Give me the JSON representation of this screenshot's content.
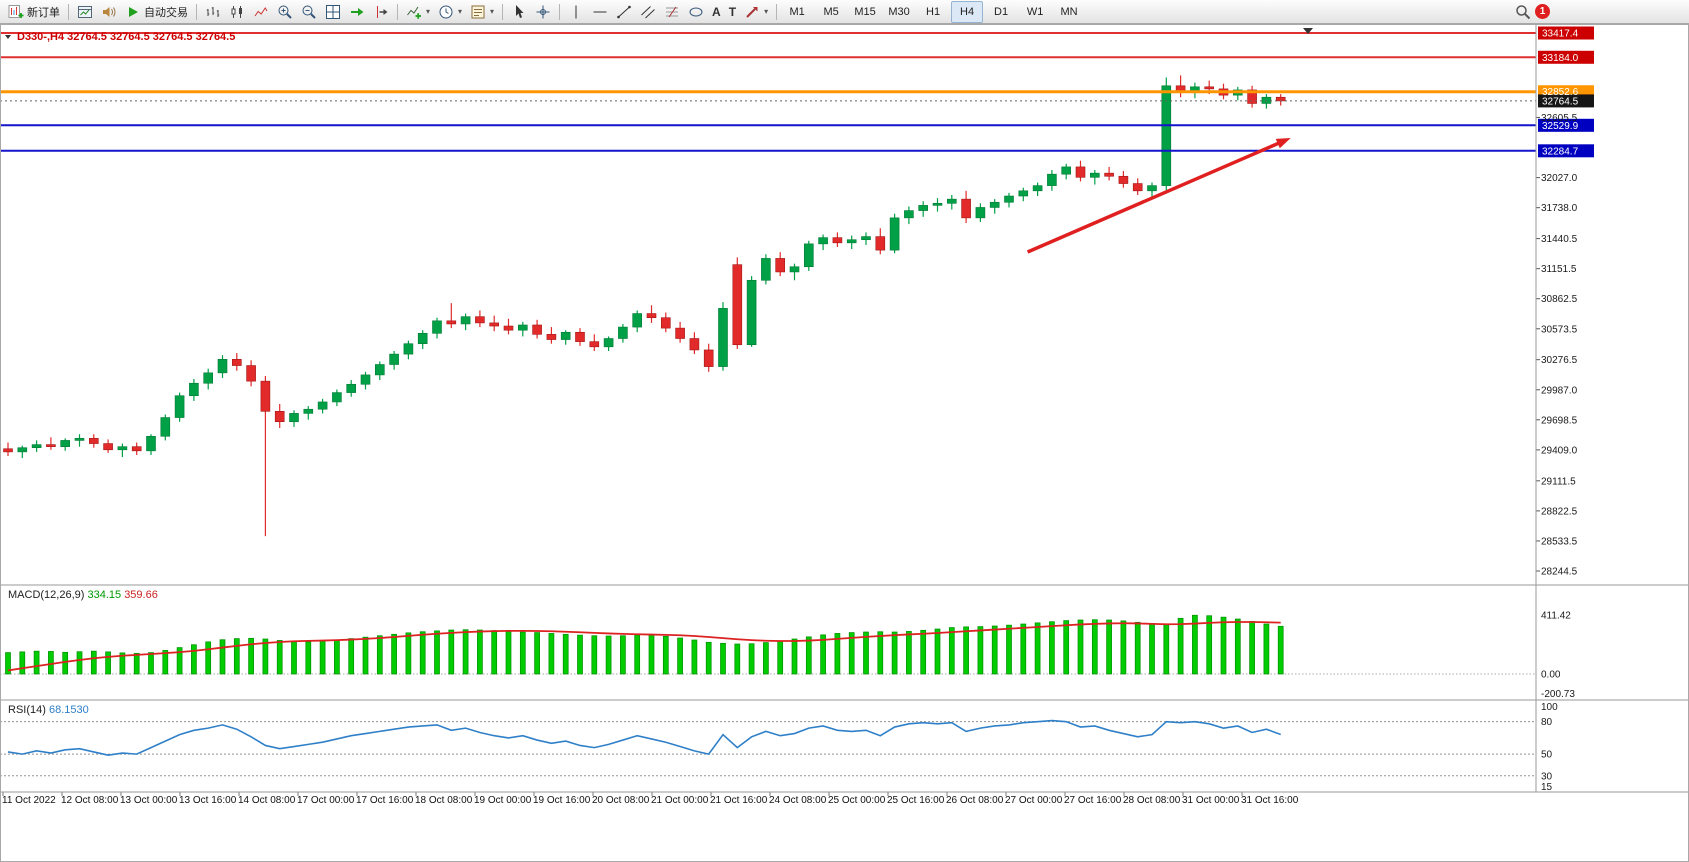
{
  "toolbar": {
    "new_order": "新订单",
    "auto_trading": "自动交易",
    "timeframes": [
      "M1",
      "M5",
      "M15",
      "M30",
      "H1",
      "H4",
      "D1",
      "W1",
      "MN"
    ],
    "active_timeframe": "H4",
    "notification_badge": "1"
  },
  "chart_data": {
    "type": "candlestick+indicators",
    "symbol": "D330-",
    "timeframe": "H4",
    "ohlc_header": "D330-,H4 32764.5 32764.5 32764.5 32764.5",
    "candles": [
      [
        29420,
        29480,
        29350,
        29390
      ],
      [
        29390,
        29450,
        29330,
        29430
      ],
      [
        29430,
        29500,
        29390,
        29460
      ],
      [
        29460,
        29530,
        29410,
        29440
      ],
      [
        29440,
        29520,
        29400,
        29500
      ],
      [
        29500,
        29560,
        29440,
        29520
      ],
      [
        29520,
        29560,
        29430,
        29470
      ],
      [
        29470,
        29510,
        29380,
        29410
      ],
      [
        29410,
        29470,
        29340,
        29440
      ],
      [
        29440,
        29480,
        29360,
        29400
      ],
      [
        29400,
        29560,
        29360,
        29540
      ],
      [
        29540,
        29750,
        29500,
        29720
      ],
      [
        29720,
        29960,
        29680,
        29930
      ],
      [
        29930,
        30090,
        29880,
        30050
      ],
      [
        30050,
        30190,
        29990,
        30150
      ],
      [
        30150,
        30320,
        30100,
        30280
      ],
      [
        30280,
        30340,
        30170,
        30220
      ],
      [
        30220,
        30270,
        30020,
        30070
      ],
      [
        30070,
        30120,
        28580,
        29780
      ],
      [
        29780,
        29850,
        29620,
        29680
      ],
      [
        29680,
        29790,
        29630,
        29760
      ],
      [
        29760,
        29830,
        29700,
        29800
      ],
      [
        29800,
        29900,
        29760,
        29870
      ],
      [
        29870,
        29990,
        29830,
        29960
      ],
      [
        29960,
        30080,
        29920,
        30040
      ],
      [
        30040,
        30160,
        29990,
        30130
      ],
      [
        30130,
        30260,
        30080,
        30230
      ],
      [
        30230,
        30360,
        30180,
        30330
      ],
      [
        30330,
        30460,
        30280,
        30430
      ],
      [
        30430,
        30560,
        30380,
        30530
      ],
      [
        30530,
        30680,
        30480,
        30650
      ],
      [
        30650,
        30820,
        30580,
        30620
      ],
      [
        30620,
        30720,
        30560,
        30690
      ],
      [
        30690,
        30750,
        30590,
        30630
      ],
      [
        30630,
        30700,
        30550,
        30600
      ],
      [
        30600,
        30670,
        30520,
        30560
      ],
      [
        30560,
        30640,
        30500,
        30610
      ],
      [
        30610,
        30660,
        30480,
        30520
      ],
      [
        30520,
        30590,
        30430,
        30470
      ],
      [
        30470,
        30560,
        30420,
        30540
      ],
      [
        30540,
        30580,
        30410,
        30450
      ],
      [
        30450,
        30520,
        30360,
        30400
      ],
      [
        30400,
        30500,
        30360,
        30480
      ],
      [
        30480,
        30620,
        30440,
        30590
      ],
      [
        30590,
        30750,
        30540,
        30720
      ],
      [
        30720,
        30800,
        30630,
        30680
      ],
      [
        30680,
        30730,
        30540,
        30580
      ],
      [
        30580,
        30640,
        30440,
        30480
      ],
      [
        30480,
        30540,
        30330,
        30370
      ],
      [
        30370,
        30430,
        30160,
        30210
      ],
      [
        30210,
        30830,
        30170,
        30770
      ],
      [
        31190,
        31260,
        30380,
        30420
      ],
      [
        30420,
        31080,
        30400,
        31040
      ],
      [
        31040,
        31290,
        31000,
        31250
      ],
      [
        31250,
        31310,
        31080,
        31120
      ],
      [
        31120,
        31200,
        31040,
        31170
      ],
      [
        31170,
        31420,
        31130,
        31390
      ],
      [
        31390,
        31480,
        31330,
        31450
      ],
      [
        31450,
        31500,
        31360,
        31400
      ],
      [
        31400,
        31470,
        31340,
        31430
      ],
      [
        31430,
        31500,
        31380,
        31460
      ],
      [
        31460,
        31540,
        31290,
        31330
      ],
      [
        31330,
        31680,
        31300,
        31640
      ],
      [
        31640,
        31750,
        31580,
        31710
      ],
      [
        31710,
        31800,
        31650,
        31760
      ],
      [
        31760,
        31830,
        31700,
        31780
      ],
      [
        31780,
        31860,
        31720,
        31820
      ],
      [
        31820,
        31900,
        31590,
        31640
      ],
      [
        31640,
        31780,
        31600,
        31740
      ],
      [
        31740,
        31820,
        31680,
        31790
      ],
      [
        31790,
        31880,
        31740,
        31850
      ],
      [
        31850,
        31930,
        31800,
        31900
      ],
      [
        31900,
        31980,
        31850,
        31950
      ],
      [
        31950,
        32100,
        31900,
        32060
      ],
      [
        32060,
        32160,
        32010,
        32130
      ],
      [
        32130,
        32190,
        31990,
        32030
      ],
      [
        32030,
        32100,
        31960,
        32070
      ],
      [
        32070,
        32130,
        32000,
        32040
      ],
      [
        32040,
        32090,
        31930,
        31970
      ],
      [
        31970,
        32020,
        31860,
        31900
      ],
      [
        31900,
        31980,
        31840,
        31950
      ],
      [
        31950,
        32990,
        31900,
        32910
      ],
      [
        32910,
        33010,
        32800,
        32860
      ],
      [
        32860,
        32940,
        32790,
        32900
      ],
      [
        32900,
        32960,
        32830,
        32880
      ],
      [
        32880,
        32930,
        32780,
        32820
      ],
      [
        32820,
        32900,
        32770,
        32870
      ],
      [
        32870,
        32910,
        32700,
        32740
      ],
      [
        32740,
        32830,
        32690,
        32800
      ],
      [
        32800,
        32830,
        32720,
        32764.5
      ]
    ],
    "price_axis_ticks": [
      "32605.5",
      "32027.0",
      "31738.0",
      "31440.5",
      "31151.5",
      "30862.5",
      "30573.5",
      "30276.5",
      "29987.0",
      "29698.5",
      "29409.0",
      "29111.5",
      "28822.5",
      "28533.5",
      "28244.5"
    ],
    "levels": [
      {
        "value": 33417.4,
        "label": "33417.4",
        "color": "#e03030",
        "label_bg": "#cc0000",
        "style": "solid",
        "width": 2
      },
      {
        "value": 33184.0,
        "label": "33184.0",
        "color": "#e03030",
        "label_bg": "#cc0000",
        "style": "solid",
        "width": 2
      },
      {
        "value": 32852.6,
        "label": "32852.6",
        "color": "#ff9500",
        "label_bg": "#ff9500",
        "style": "solid",
        "width": 3
      },
      {
        "value": 32764.5,
        "label": "32764.5",
        "color": "#606060",
        "label_bg": "#161616",
        "style": "dotted",
        "width": 1
      },
      {
        "value": 32529.9,
        "label": "32529.9",
        "color": "#1414cc",
        "label_bg": "#0000c0",
        "style": "solid",
        "width": 2
      },
      {
        "value": 32284.7,
        "label": "32284.7",
        "color": "#1414cc",
        "label_bg": "#0000c0",
        "style": "solid",
        "width": 2
      }
    ],
    "trend_arrow": {
      "from_bar": 71.3,
      "from_price": 31312,
      "to_bar": 89.7,
      "to_price": 32408,
      "color": "#e02020"
    },
    "time_labels": [
      "11 Oct 2022",
      "12 Oct 08:00",
      "13 Oct 00:00",
      "13 Oct 16:00",
      "14 Oct 08:00",
      "17 Oct 00:00",
      "17 Oct 16:00",
      "18 Oct 08:00",
      "19 Oct 00:00",
      "19 Oct 16:00",
      "20 Oct 08:00",
      "21 Oct 00:00",
      "21 Oct 16:00",
      "24 Oct 08:00",
      "25 Oct 00:00",
      "25 Oct 16:00",
      "26 Oct 08:00",
      "27 Oct 00:00",
      "27 Oct 16:00",
      "28 Oct 08:00",
      "31 Oct 00:00",
      "31 Oct 16:00"
    ],
    "macd": {
      "label": "MACD(12,26,9)",
      "main_value": "334.15",
      "signal_value": "359.66",
      "axis": [
        "411.42",
        "0.00",
        "-200.73"
      ],
      "histogram": [
        150,
        155,
        160,
        158,
        152,
        156,
        160,
        155,
        148,
        145,
        150,
        165,
        185,
        205,
        225,
        240,
        248,
        250,
        245,
        235,
        228,
        225,
        230,
        238,
        248,
        258,
        268,
        278,
        288,
        296,
        302,
        308,
        310,
        308,
        304,
        298,
        294,
        290,
        284,
        278,
        272,
        268,
        266,
        268,
        274,
        272,
        264,
        252,
        238,
        222,
        215,
        210,
        212,
        220,
        232,
        245,
        260,
        274,
        284,
        290,
        294,
        296,
        294,
        298,
        306,
        315,
        325,
        330,
        332,
        336,
        342,
        350,
        358,
        366,
        374,
        378,
        380,
        378,
        372,
        362,
        352,
        345,
        390,
        411.42,
        408,
        398,
        385,
        368,
        350,
        334.15
      ],
      "signal": [
        25,
        40,
        55,
        70,
        85,
        98,
        110,
        120,
        128,
        134,
        140,
        146,
        153,
        162,
        173,
        185,
        197,
        208,
        217,
        224,
        229,
        232,
        234,
        237,
        241,
        246,
        252,
        259,
        267,
        275,
        282,
        288,
        293,
        297,
        300,
        302,
        302,
        301,
        299,
        296,
        292,
        288,
        284,
        281,
        278,
        276,
        274,
        271,
        266,
        259,
        251,
        243,
        237,
        233,
        231,
        231,
        234,
        239,
        246,
        253,
        260,
        266,
        272,
        277,
        282,
        287,
        293,
        299,
        305,
        311,
        317,
        323,
        329,
        335,
        341,
        347,
        351,
        354,
        355,
        354,
        351,
        348,
        349,
        353,
        358,
        362,
        364,
        364,
        362,
        359.66
      ]
    },
    "rsi": {
      "label": "RSI(14)",
      "value": "68.1530",
      "axis": [
        "100",
        "80",
        "50",
        "30",
        "15"
      ],
      "level_lines": [
        80,
        50,
        30
      ],
      "series": [
        52,
        50,
        53,
        51,
        54,
        55,
        52,
        49,
        51,
        50,
        56,
        62,
        68,
        72,
        74,
        77,
        73,
        66,
        58,
        55,
        57,
        59,
        61,
        64,
        67,
        69,
        71,
        73,
        75,
        76,
        77,
        72,
        74,
        70,
        67,
        65,
        67,
        63,
        60,
        62,
        58,
        56,
        59,
        63,
        67,
        64,
        61,
        57,
        53,
        50,
        68,
        56,
        66,
        71,
        67,
        69,
        74,
        76,
        72,
        71,
        72,
        67,
        75,
        78,
        79,
        78,
        79,
        71,
        74,
        76,
        77,
        79,
        80,
        81,
        80,
        75,
        76,
        72,
        69,
        66,
        68,
        80,
        79,
        80,
        78,
        74,
        76,
        70,
        73,
        68.15
      ]
    }
  }
}
